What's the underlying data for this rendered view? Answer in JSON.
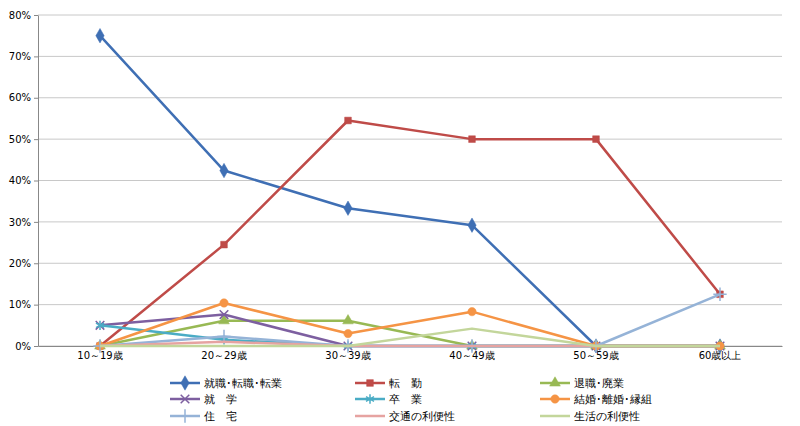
{
  "chart_data": {
    "type": "line",
    "categories": [
      "10～19歳",
      "20～29歳",
      "30～39歳",
      "40～49歳",
      "50～59歳",
      "60歳以上"
    ],
    "ylim": [
      0,
      80
    ],
    "yticks": [
      {
        "value": 0,
        "label": "0%"
      },
      {
        "value": 10,
        "label": "10%"
      },
      {
        "value": 20,
        "label": "20%"
      },
      {
        "value": 30,
        "label": "30%"
      },
      {
        "value": 40,
        "label": "40%"
      },
      {
        "value": 50,
        "label": "50%"
      },
      {
        "value": 60,
        "label": "60%"
      },
      {
        "value": 70,
        "label": "70%"
      },
      {
        "value": 80,
        "label": "80%"
      }
    ],
    "grid": true,
    "legend": "bottom",
    "series": [
      {
        "name": "就職･転職･転業",
        "color": "#3f6fb4",
        "marker": "diamond",
        "values": [
          75,
          42.4,
          33.3,
          29.2,
          0,
          0
        ]
      },
      {
        "name": "転　勤",
        "color": "#bf4b48",
        "marker": "square",
        "values": [
          0,
          24.5,
          54.5,
          50,
          50,
          12.5
        ]
      },
      {
        "name": "退職･廃業",
        "color": "#98b954",
        "marker": "triangle",
        "values": [
          0,
          6.1,
          6.1,
          0,
          0,
          0
        ]
      },
      {
        "name": "就　学",
        "color": "#7d5fa0",
        "marker": "x",
        "values": [
          5,
          7.6,
          0,
          0,
          0,
          0
        ]
      },
      {
        "name": "卒　業",
        "color": "#4aacc5",
        "marker": "asterisk",
        "values": [
          5,
          1.5,
          0,
          0,
          0,
          0
        ]
      },
      {
        "name": "結婚･離婚･縁組",
        "color": "#f59445",
        "marker": "circle",
        "values": [
          0,
          10.4,
          3,
          8.3,
          0,
          0
        ]
      },
      {
        "name": "住　宅",
        "color": "#95b3d7",
        "marker": "plus",
        "values": [
          0,
          2.3,
          0,
          0,
          0,
          12.5
        ]
      },
      {
        "name": "交通の利便性",
        "color": "#e6a3a1",
        "marker": "none",
        "values": [
          0,
          1,
          0,
          0,
          0,
          0
        ]
      },
      {
        "name": "生活の利便性",
        "color": "#c3d69b",
        "marker": "none",
        "values": [
          0,
          0,
          0,
          4.2,
          0,
          0
        ]
      }
    ]
  }
}
